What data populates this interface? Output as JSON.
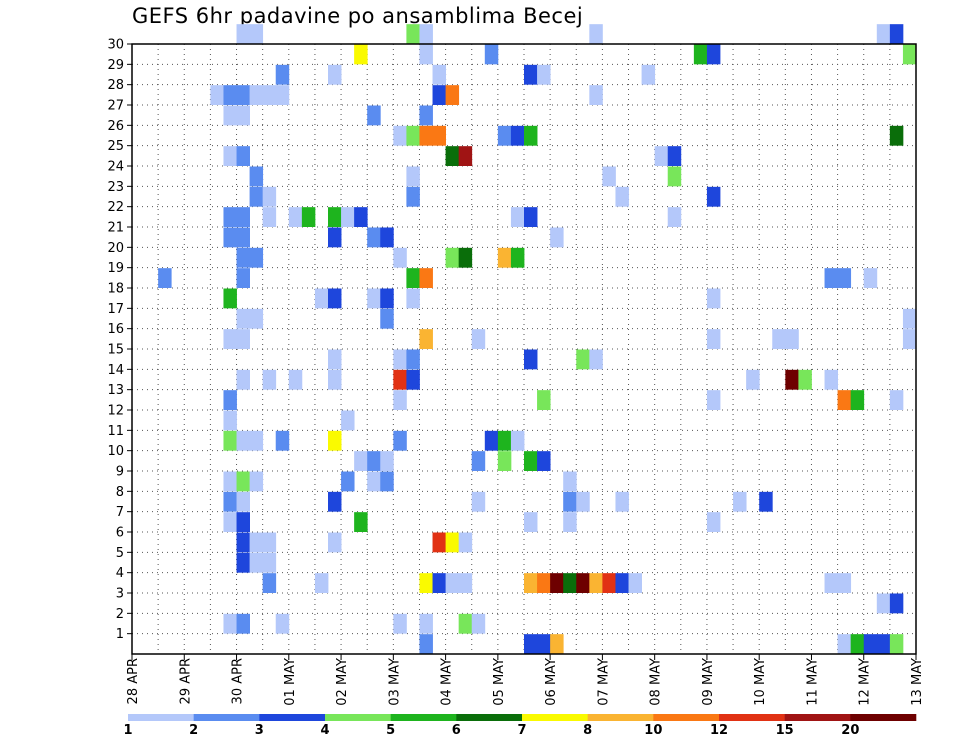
{
  "title": "GEFS 6hr padavine po ansamblima Becej",
  "chart_data": {
    "type": "heatmap",
    "title": "GEFS 6hr padavine po ansamblima Becej",
    "x_tick_labels": [
      "28 APR",
      "29 APR",
      "30 APR",
      "01 MAY",
      "02 MAY",
      "03 MAY",
      "04 MAY",
      "05 MAY",
      "06 MAY",
      "07 MAY",
      "08 MAY",
      "09 MAY",
      "10 MAY",
      "11 MAY",
      "12 MAY",
      "13 MAY"
    ],
    "y_tick_labels": [
      "1",
      "2",
      "3",
      "4",
      "5",
      "6",
      "7",
      "8",
      "9",
      "10",
      "11",
      "12",
      "13",
      "14",
      "15",
      "16",
      "17",
      "18",
      "19",
      "20",
      "21",
      "22",
      "23",
      "24",
      "25",
      "26",
      "27",
      "28",
      "29",
      "30"
    ],
    "x_unit_note": "x = 6-hour step index (0 = 28 APR 00Z, 4 steps per day)",
    "xlim": [
      0,
      60
    ],
    "ylim": [
      0,
      30
    ],
    "grid": true,
    "colorbar": {
      "levels": [
        "1",
        "2",
        "3",
        "4",
        "5",
        "6",
        "7",
        "8",
        "10",
        "12",
        "15",
        "20"
      ],
      "colors": [
        "#b4c8fa",
        "#5a8cf0",
        "#1e46dc",
        "#78e65a",
        "#1eb41e",
        "#0a6e0a",
        "#fafa00",
        "#fab432",
        "#fa7814",
        "#e13214",
        "#a01414",
        "#6e0000"
      ]
    },
    "cells": [
      [
        8,
        30,
        0
      ],
      [
        9,
        30,
        0
      ],
      [
        21,
        30,
        3
      ],
      [
        22,
        30,
        0
      ],
      [
        35,
        30,
        0
      ],
      [
        57,
        30,
        0
      ],
      [
        58,
        30,
        2
      ],
      [
        17,
        29,
        6
      ],
      [
        22,
        29,
        0
      ],
      [
        27,
        29,
        1
      ],
      [
        43,
        29,
        4
      ],
      [
        44,
        29,
        2
      ],
      [
        59,
        29,
        3
      ],
      [
        11,
        28,
        1
      ],
      [
        15,
        28,
        0
      ],
      [
        23,
        28,
        0
      ],
      [
        30,
        28,
        2
      ],
      [
        31,
        28,
        0
      ],
      [
        39,
        28,
        0
      ],
      [
        6,
        27,
        0
      ],
      [
        7,
        27,
        1
      ],
      [
        8,
        27,
        1
      ],
      [
        9,
        27,
        0
      ],
      [
        10,
        27,
        0
      ],
      [
        11,
        27,
        0
      ],
      [
        23,
        27,
        2
      ],
      [
        24,
        27,
        8
      ],
      [
        35,
        27,
        0
      ],
      [
        7,
        26,
        0
      ],
      [
        8,
        26,
        0
      ],
      [
        18,
        26,
        1
      ],
      [
        22,
        26,
        1
      ],
      [
        20,
        25,
        0
      ],
      [
        21,
        25,
        3
      ],
      [
        22,
        25,
        8
      ],
      [
        23,
        25,
        8
      ],
      [
        28,
        25,
        1
      ],
      [
        29,
        25,
        2
      ],
      [
        30,
        25,
        4
      ],
      [
        58,
        25,
        5
      ],
      [
        7,
        24,
        0
      ],
      [
        8,
        24,
        1
      ],
      [
        24,
        24,
        5
      ],
      [
        25,
        24,
        10
      ],
      [
        40,
        24,
        0
      ],
      [
        41,
        24,
        2
      ],
      [
        9,
        23,
        1
      ],
      [
        21,
        23,
        0
      ],
      [
        36,
        23,
        0
      ],
      [
        41,
        23,
        3
      ],
      [
        9,
        22,
        1
      ],
      [
        10,
        22,
        0
      ],
      [
        21,
        22,
        1
      ],
      [
        37,
        22,
        0
      ],
      [
        44,
        22,
        2
      ],
      [
        7,
        21,
        1
      ],
      [
        8,
        21,
        1
      ],
      [
        10,
        21,
        0
      ],
      [
        12,
        21,
        0
      ],
      [
        13,
        21,
        4
      ],
      [
        15,
        21,
        4
      ],
      [
        16,
        21,
        0
      ],
      [
        17,
        21,
        2
      ],
      [
        29,
        21,
        0
      ],
      [
        30,
        21,
        2
      ],
      [
        41,
        21,
        0
      ],
      [
        7,
        20,
        1
      ],
      [
        8,
        20,
        1
      ],
      [
        15,
        20,
        2
      ],
      [
        18,
        20,
        1
      ],
      [
        19,
        20,
        2
      ],
      [
        32,
        20,
        0
      ],
      [
        8,
        19,
        1
      ],
      [
        9,
        19,
        1
      ],
      [
        20,
        19,
        0
      ],
      [
        24,
        19,
        3
      ],
      [
        25,
        19,
        5
      ],
      [
        28,
        19,
        7
      ],
      [
        29,
        19,
        4
      ],
      [
        2,
        18,
        1
      ],
      [
        8,
        18,
        1
      ],
      [
        21,
        18,
        4
      ],
      [
        22,
        18,
        8
      ],
      [
        53,
        18,
        1
      ],
      [
        54,
        18,
        1
      ],
      [
        56,
        18,
        0
      ],
      [
        7,
        17,
        4
      ],
      [
        14,
        17,
        0
      ],
      [
        15,
        17,
        2
      ],
      [
        18,
        17,
        0
      ],
      [
        19,
        17,
        2
      ],
      [
        21,
        17,
        0
      ],
      [
        44,
        17,
        0
      ],
      [
        8,
        16,
        0
      ],
      [
        9,
        16,
        0
      ],
      [
        19,
        16,
        1
      ],
      [
        59,
        16,
        0
      ],
      [
        7,
        15,
        0
      ],
      [
        8,
        15,
        0
      ],
      [
        22,
        15,
        7
      ],
      [
        26,
        15,
        0
      ],
      [
        44,
        15,
        0
      ],
      [
        49,
        15,
        0
      ],
      [
        50,
        15,
        0
      ],
      [
        59,
        15,
        0
      ],
      [
        15,
        14,
        0
      ],
      [
        20,
        14,
        0
      ],
      [
        21,
        14,
        1
      ],
      [
        30,
        14,
        2
      ],
      [
        34,
        14,
        3
      ],
      [
        35,
        14,
        0
      ],
      [
        8,
        13,
        0
      ],
      [
        10,
        13,
        0
      ],
      [
        12,
        13,
        0
      ],
      [
        15,
        13,
        0
      ],
      [
        20,
        13,
        9
      ],
      [
        21,
        13,
        2
      ],
      [
        47,
        13,
        0
      ],
      [
        50,
        13,
        11
      ],
      [
        51,
        13,
        3
      ],
      [
        53,
        13,
        0
      ],
      [
        7,
        12,
        1
      ],
      [
        20,
        12,
        0
      ],
      [
        31,
        12,
        3
      ],
      [
        44,
        12,
        0
      ],
      [
        54,
        12,
        8
      ],
      [
        55,
        12,
        4
      ],
      [
        58,
        12,
        0
      ],
      [
        7,
        11,
        0
      ],
      [
        16,
        11,
        0
      ],
      [
        7,
        10,
        3
      ],
      [
        8,
        10,
        0
      ],
      [
        9,
        10,
        0
      ],
      [
        11,
        10,
        1
      ],
      [
        15,
        10,
        6
      ],
      [
        20,
        10,
        1
      ],
      [
        27,
        10,
        2
      ],
      [
        28,
        10,
        4
      ],
      [
        29,
        10,
        0
      ],
      [
        17,
        9,
        0
      ],
      [
        18,
        9,
        1
      ],
      [
        19,
        9,
        0
      ],
      [
        26,
        9,
        1
      ],
      [
        28,
        9,
        3
      ],
      [
        30,
        9,
        4
      ],
      [
        31,
        9,
        2
      ],
      [
        7,
        8,
        0
      ],
      [
        8,
        8,
        3
      ],
      [
        9,
        8,
        0
      ],
      [
        16,
        8,
        1
      ],
      [
        18,
        8,
        0
      ],
      [
        19,
        8,
        1
      ],
      [
        33,
        8,
        0
      ],
      [
        7,
        7,
        1
      ],
      [
        8,
        7,
        0
      ],
      [
        15,
        7,
        2
      ],
      [
        26,
        7,
        0
      ],
      [
        33,
        7,
        1
      ],
      [
        34,
        7,
        0
      ],
      [
        37,
        7,
        0
      ],
      [
        46,
        7,
        0
      ],
      [
        48,
        7,
        2
      ],
      [
        7,
        6,
        0
      ],
      [
        8,
        6,
        2
      ],
      [
        17,
        6,
        4
      ],
      [
        30,
        6,
        0
      ],
      [
        33,
        6,
        0
      ],
      [
        44,
        6,
        0
      ],
      [
        8,
        5,
        2
      ],
      [
        9,
        5,
        0
      ],
      [
        10,
        5,
        0
      ],
      [
        15,
        5,
        0
      ],
      [
        23,
        5,
        9
      ],
      [
        24,
        5,
        6
      ],
      [
        25,
        5,
        0
      ],
      [
        8,
        4,
        2
      ],
      [
        9,
        4,
        0
      ],
      [
        10,
        4,
        0
      ],
      [
        10,
        3,
        1
      ],
      [
        14,
        3,
        0
      ],
      [
        22,
        3,
        6
      ],
      [
        23,
        3,
        2
      ],
      [
        24,
        3,
        0
      ],
      [
        25,
        3,
        0
      ],
      [
        30,
        3,
        7
      ],
      [
        31,
        3,
        8
      ],
      [
        32,
        3,
        11
      ],
      [
        33,
        3,
        5
      ],
      [
        34,
        3,
        11
      ],
      [
        35,
        3,
        7
      ],
      [
        36,
        3,
        9
      ],
      [
        37,
        3,
        2
      ],
      [
        38,
        3,
        0
      ],
      [
        53,
        3,
        0
      ],
      [
        54,
        3,
        0
      ],
      [
        57,
        2,
        0
      ],
      [
        58,
        2,
        2
      ],
      [
        7,
        1,
        0
      ],
      [
        8,
        1,
        1
      ],
      [
        11,
        1,
        0
      ],
      [
        20,
        1,
        0
      ],
      [
        22,
        1,
        0
      ],
      [
        25,
        1,
        3
      ],
      [
        26,
        1,
        0
      ],
      [
        22,
        0,
        1
      ],
      [
        30,
        0,
        2
      ],
      [
        31,
        0,
        2
      ],
      [
        32,
        0,
        7
      ],
      [
        54,
        0,
        0
      ],
      [
        55,
        0,
        4
      ],
      [
        56,
        0,
        2
      ],
      [
        57,
        0,
        2
      ],
      [
        58,
        0,
        3
      ]
    ]
  }
}
